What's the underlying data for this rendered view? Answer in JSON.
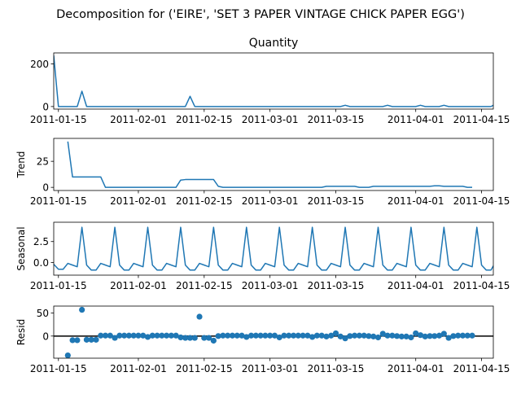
{
  "suptitle": "Decomposition for ('EIRE', 'SET 3 PAPER VINTAGE CHICK PAPER EGG')",
  "series_color": "#1f77b4",
  "x_ticks": [
    "2011-01-15",
    "2011-02-01",
    "2011-02-15",
    "2011-03-01",
    "2011-03-15",
    "2011-04-01",
    "2011-04-15"
  ],
  "x_ticks_day": [
    0,
    17,
    31,
    45,
    59,
    76,
    90
  ],
  "x_start": "2011-01-14",
  "chart_data": [
    {
      "type": "line",
      "title": "Quantity",
      "ylabel": "",
      "yticks": [
        0,
        200
      ],
      "xlim_day": [
        -1,
        92.5
      ],
      "ylim": [
        -12,
        252
      ],
      "x_day": [
        -1,
        0,
        1,
        2,
        3,
        4,
        5,
        6,
        7,
        8,
        9,
        10,
        11,
        12,
        13,
        14,
        15,
        16,
        17,
        18,
        19,
        20,
        21,
        22,
        23,
        24,
        25,
        26,
        27,
        28,
        29,
        30,
        31,
        32,
        33,
        34,
        35,
        36,
        37,
        38,
        39,
        40,
        41,
        42,
        43,
        44,
        45,
        46,
        47,
        48,
        49,
        50,
        51,
        52,
        53,
        54,
        55,
        56,
        57,
        58,
        59,
        60,
        61,
        62,
        63,
        64,
        65,
        66,
        67,
        68,
        69,
        70,
        71,
        72,
        73,
        74,
        75,
        76,
        77,
        78,
        79,
        80,
        81,
        82,
        83,
        84,
        85,
        86,
        87,
        88,
        89,
        90,
        91,
        92,
        92.5
      ],
      "values": [
        240,
        0,
        0,
        0,
        0,
        0,
        72,
        0,
        0,
        0,
        0,
        0,
        0,
        0,
        0,
        0,
        0,
        0,
        0,
        0,
        0,
        0,
        0,
        0,
        0,
        0,
        0,
        0,
        0,
        48,
        0,
        0,
        0,
        0,
        0,
        0,
        0,
        0,
        0,
        0,
        0,
        0,
        0,
        0,
        0,
        0,
        0,
        0,
        0,
        0,
        0,
        0,
        0,
        0,
        0,
        0,
        0,
        0,
        0,
        0,
        0,
        0,
        6,
        0,
        0,
        0,
        0,
        0,
        0,
        0,
        0,
        6,
        0,
        0,
        0,
        0,
        0,
        0,
        6,
        0,
        0,
        0,
        0,
        6,
        0,
        0,
        0,
        0,
        0,
        0,
        0,
        0,
        0,
        0,
        6
      ]
    },
    {
      "type": "line",
      "title": "",
      "ylabel": "Trend",
      "yticks": [
        0,
        25
      ],
      "xlim_day": [
        -1,
        92.5
      ],
      "ylim": [
        -3,
        47
      ],
      "x_day": [
        2,
        3,
        4,
        5,
        6,
        7,
        8,
        9,
        10,
        11,
        12,
        13,
        14,
        15,
        16,
        17,
        18,
        19,
        20,
        21,
        22,
        23,
        24,
        25,
        26,
        27,
        28,
        29,
        30,
        31,
        32,
        33,
        34,
        35,
        36,
        37,
        38,
        39,
        40,
        41,
        42,
        43,
        44,
        45,
        46,
        47,
        48,
        49,
        50,
        51,
        52,
        53,
        54,
        55,
        56,
        57,
        58,
        59,
        60,
        61,
        62,
        63,
        64,
        65,
        66,
        67,
        68,
        69,
        70,
        71,
        72,
        73,
        74,
        75,
        76,
        77,
        78,
        79,
        80,
        81,
        82,
        83,
        84,
        85,
        86,
        87,
        88
      ],
      "values": [
        44,
        10,
        10,
        10,
        10,
        10,
        10,
        10,
        0,
        0,
        0,
        0,
        0,
        0,
        0,
        0,
        0,
        0,
        0,
        0,
        0,
        0,
        0,
        0,
        7,
        7.5,
        7.5,
        7.5,
        7.5,
        7.5,
        7.5,
        7.5,
        1,
        0,
        0,
        0,
        0,
        0,
        0,
        0,
        0,
        0,
        0,
        0,
        0,
        0,
        0,
        0,
        0,
        0,
        0,
        0,
        0,
        0,
        0,
        1,
        1,
        1,
        1,
        1,
        1,
        1,
        0,
        0,
        0,
        1,
        1,
        1,
        1,
        1,
        1,
        1,
        1,
        1,
        1,
        1,
        1,
        1,
        1.5,
        1.5,
        1,
        1,
        1,
        1,
        1,
        0,
        0
      ]
    },
    {
      "type": "line",
      "title": "",
      "ylabel": "Seasonal",
      "yticks": [
        0.0,
        2.5
      ],
      "ytick_labels": [
        "0.0",
        "2.5"
      ],
      "xlim_day": [
        -1,
        92.5
      ],
      "ylim": [
        -1.5,
        4.8
      ],
      "x_day": [
        -1,
        0,
        1,
        2,
        3,
        4,
        5,
        6,
        7,
        8,
        9,
        10,
        11,
        12,
        13,
        14,
        15,
        16,
        17,
        18,
        19,
        20,
        21,
        22,
        23,
        24,
        25,
        26,
        27,
        28,
        29,
        30,
        31,
        32,
        33,
        34,
        35,
        36,
        37,
        38,
        39,
        40,
        41,
        42,
        43,
        44,
        45,
        46,
        47,
        48,
        49,
        50,
        51,
        52,
        53,
        54,
        55,
        56,
        57,
        58,
        59,
        60,
        61,
        62,
        63,
        64,
        65,
        66,
        67,
        68,
        69,
        70,
        71,
        72,
        73,
        74,
        75,
        76,
        77,
        78,
        79,
        80,
        81,
        82,
        83,
        84,
        85,
        86,
        87,
        88,
        89,
        90,
        91,
        92,
        92.5
      ],
      "values": [
        -0.2,
        -0.8,
        -0.8,
        -0.1,
        -0.3,
        -0.5,
        4.2,
        -0.3,
        -0.9,
        -0.9,
        -0.1,
        -0.3,
        -0.5,
        4.2,
        -0.3,
        -0.9,
        -0.9,
        -0.1,
        -0.3,
        -0.5,
        4.2,
        -0.3,
        -0.9,
        -0.9,
        -0.1,
        -0.3,
        -0.5,
        4.2,
        -0.3,
        -0.9,
        -0.9,
        -0.1,
        -0.3,
        -0.5,
        4.2,
        -0.3,
        -0.9,
        -0.9,
        -0.1,
        -0.3,
        -0.5,
        4.2,
        -0.3,
        -0.9,
        -0.9,
        -0.1,
        -0.3,
        -0.5,
        4.2,
        -0.3,
        -0.9,
        -0.9,
        -0.1,
        -0.3,
        -0.5,
        4.2,
        -0.3,
        -0.9,
        -0.9,
        -0.1,
        -0.3,
        -0.5,
        4.2,
        -0.3,
        -0.9,
        -0.9,
        -0.1,
        -0.3,
        -0.5,
        4.2,
        -0.3,
        -0.9,
        -0.9,
        -0.1,
        -0.3,
        -0.5,
        4.2,
        -0.3,
        -0.9,
        -0.9,
        -0.1,
        -0.3,
        -0.5,
        4.2,
        -0.3,
        -0.9,
        -0.9,
        -0.1,
        -0.3,
        -0.5,
        4.2,
        -0.3,
        -0.9,
        -0.9,
        -0.4
      ]
    },
    {
      "type": "scatter",
      "title": "",
      "ylabel": "Resid",
      "yticks": [
        0,
        50
      ],
      "xlim_day": [
        -1,
        92.5
      ],
      "ylim": [
        -48,
        65
      ],
      "reference_line": 0,
      "x_day": [
        2,
        3,
        4,
        5,
        6,
        7,
        8,
        9,
        10,
        11,
        12,
        13,
        14,
        15,
        16,
        17,
        18,
        19,
        20,
        21,
        22,
        23,
        24,
        25,
        26,
        27,
        28,
        29,
        30,
        31,
        32,
        33,
        34,
        35,
        36,
        37,
        38,
        39,
        40,
        41,
        42,
        43,
        44,
        45,
        46,
        47,
        48,
        49,
        50,
        51,
        52,
        53,
        54,
        55,
        56,
        57,
        58,
        59,
        60,
        61,
        62,
        63,
        64,
        65,
        66,
        67,
        68,
        69,
        70,
        71,
        72,
        73,
        74,
        75,
        76,
        77,
        78,
        79,
        80,
        81,
        82,
        83,
        84,
        85,
        86,
        87,
        88
      ],
      "values": [
        -42,
        -9,
        -9,
        57,
        -8,
        -8,
        -8,
        1,
        1,
        1,
        -4,
        1,
        1,
        1,
        1,
        1,
        1,
        -2,
        1,
        1,
        1,
        1,
        1,
        1,
        -3,
        -4,
        -4,
        -4,
        42,
        -4,
        -4,
        -10,
        0,
        1,
        1,
        1,
        1,
        1,
        -2,
        1,
        1,
        1,
        1,
        1,
        1,
        -3,
        1,
        1,
        1,
        1,
        1,
        1,
        -2,
        1,
        1,
        -1,
        1,
        6,
        -1,
        -5,
        0,
        1,
        1,
        1,
        0,
        -1,
        -3,
        5,
        1,
        1,
        0,
        -1,
        -1,
        -3,
        6,
        2,
        -1,
        0,
        0,
        1,
        5,
        -4,
        0,
        1,
        1,
        1,
        1
      ]
    }
  ]
}
